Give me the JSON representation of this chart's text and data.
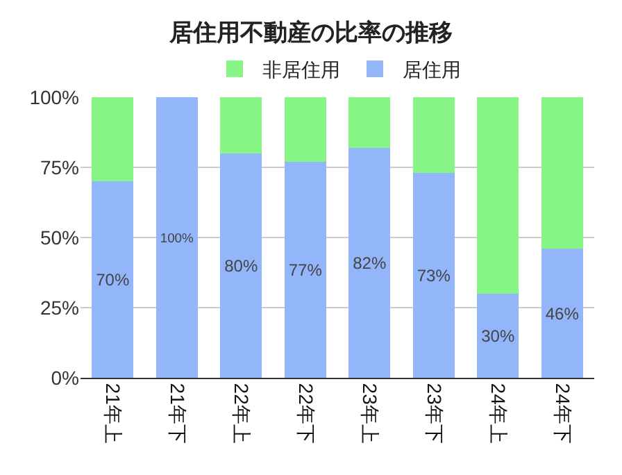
{
  "chart_data": {
    "type": "bar",
    "title": "居住用不動産の比率の推移",
    "categories": [
      "21年上",
      "21年下",
      "22年上",
      "22年下",
      "23年上",
      "23年下",
      "24年上",
      "24年下"
    ],
    "stacked": true,
    "series": [
      {
        "name": "居住用",
        "color": "#93b6fb",
        "values": [
          70,
          100,
          80,
          77,
          82,
          73,
          30,
          46
        ],
        "value_labels": [
          "70%",
          "100%",
          "80%",
          "77%",
          "82%",
          "73%",
          "30%",
          "46%"
        ]
      },
      {
        "name": "非居住用",
        "color": "#86f585",
        "values": [
          30,
          0,
          20,
          23,
          18,
          27,
          70,
          54
        ]
      }
    ],
    "ylim": [
      0,
      100
    ],
    "yticks": [
      {
        "value": 0,
        "label": "0%"
      },
      {
        "value": 25,
        "label": "25%"
      },
      {
        "value": 50,
        "label": "50%"
      },
      {
        "value": 75,
        "label": "75%"
      },
      {
        "value": 100,
        "label": "100%"
      }
    ],
    "grid": "y",
    "legend": "top"
  }
}
